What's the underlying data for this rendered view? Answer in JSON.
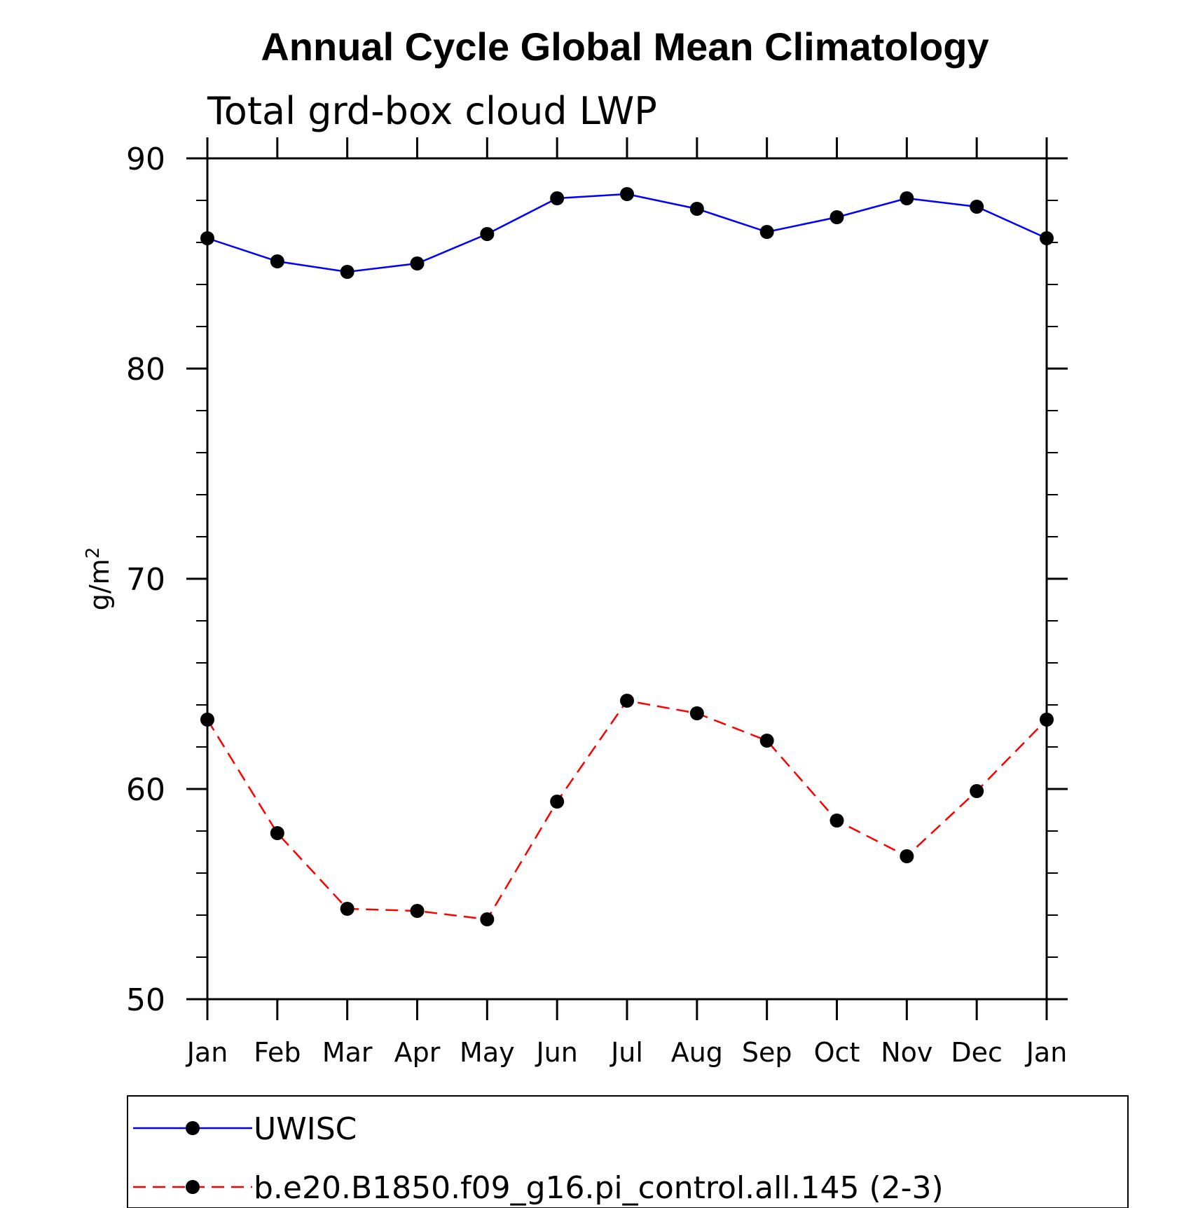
{
  "chart_data": {
    "type": "line",
    "title": "Annual Cycle Global Mean Climatology",
    "subtitle": "Total grd-box cloud LWP",
    "xlabel": "",
    "ylabel": "g/m",
    "ylabel_superscript": "2",
    "categories": [
      "Jan",
      "Feb",
      "Mar",
      "Apr",
      "May",
      "Jun",
      "Jul",
      "Aug",
      "Sep",
      "Oct",
      "Nov",
      "Dec",
      "Jan"
    ],
    "ylim": [
      50,
      90
    ],
    "yticks": [
      50,
      60,
      70,
      80,
      90
    ],
    "ytick_labels": [
      "50",
      "60",
      "70",
      "80",
      "90"
    ],
    "y_minor_step": 2,
    "grid": false,
    "legend_position": "bottom",
    "series": [
      {
        "name": "UWISC",
        "color": "#0000ff",
        "line_style": "solid",
        "marker": "filled-circle",
        "values": [
          86.2,
          85.1,
          84.6,
          85.0,
          86.4,
          88.1,
          88.3,
          87.6,
          86.5,
          87.2,
          88.1,
          87.7,
          86.2
        ]
      },
      {
        "name": "b.e20.B1850.f09_g16.pi_control.all.145 (2-3)",
        "color": "#ff0000",
        "line_style": "dashed",
        "marker": "filled-circle",
        "values": [
          63.3,
          57.9,
          54.3,
          54.2,
          53.8,
          59.4,
          64.2,
          63.6,
          62.3,
          58.5,
          56.8,
          59.9,
          63.3
        ]
      }
    ]
  }
}
